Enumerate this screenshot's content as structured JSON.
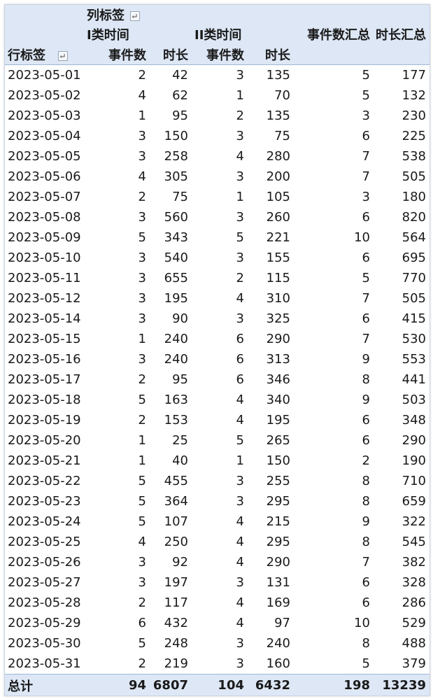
{
  "pivot": {
    "row_label_header": "行标签",
    "column_label_header": "列标签",
    "groups": [
      "I类时间",
      "II类时间"
    ],
    "measures": [
      "事件数",
      "时长"
    ],
    "total_headers": [
      "事件数汇总",
      "时长汇总"
    ],
    "total_row_label": "总计",
    "rows": [
      {
        "date": "2023-05-01",
        "n1": 2,
        "t1": 42,
        "n2": 3,
        "t2": 135,
        "sn": 5,
        "st": 177
      },
      {
        "date": "2023-05-02",
        "n1": 4,
        "t1": 62,
        "n2": 1,
        "t2": 70,
        "sn": 5,
        "st": 132
      },
      {
        "date": "2023-05-03",
        "n1": 1,
        "t1": 95,
        "n2": 2,
        "t2": 135,
        "sn": 3,
        "st": 230
      },
      {
        "date": "2023-05-04",
        "n1": 3,
        "t1": 150,
        "n2": 3,
        "t2": 75,
        "sn": 6,
        "st": 225
      },
      {
        "date": "2023-05-05",
        "n1": 3,
        "t1": 258,
        "n2": 4,
        "t2": 280,
        "sn": 7,
        "st": 538
      },
      {
        "date": "2023-05-06",
        "n1": 4,
        "t1": 305,
        "n2": 3,
        "t2": 200,
        "sn": 7,
        "st": 505
      },
      {
        "date": "2023-05-07",
        "n1": 2,
        "t1": 75,
        "n2": 1,
        "t2": 105,
        "sn": 3,
        "st": 180
      },
      {
        "date": "2023-05-08",
        "n1": 3,
        "t1": 560,
        "n2": 3,
        "t2": 260,
        "sn": 6,
        "st": 820
      },
      {
        "date": "2023-05-09",
        "n1": 5,
        "t1": 343,
        "n2": 5,
        "t2": 221,
        "sn": 10,
        "st": 564
      },
      {
        "date": "2023-05-10",
        "n1": 3,
        "t1": 540,
        "n2": 3,
        "t2": 155,
        "sn": 6,
        "st": 695
      },
      {
        "date": "2023-05-11",
        "n1": 3,
        "t1": 655,
        "n2": 2,
        "t2": 115,
        "sn": 5,
        "st": 770
      },
      {
        "date": "2023-05-12",
        "n1": 3,
        "t1": 195,
        "n2": 4,
        "t2": 310,
        "sn": 7,
        "st": 505
      },
      {
        "date": "2023-05-14",
        "n1": 3,
        "t1": 90,
        "n2": 3,
        "t2": 325,
        "sn": 6,
        "st": 415
      },
      {
        "date": "2023-05-15",
        "n1": 1,
        "t1": 240,
        "n2": 6,
        "t2": 290,
        "sn": 7,
        "st": 530
      },
      {
        "date": "2023-05-16",
        "n1": 3,
        "t1": 240,
        "n2": 6,
        "t2": 313,
        "sn": 9,
        "st": 553
      },
      {
        "date": "2023-05-17",
        "n1": 2,
        "t1": 95,
        "n2": 6,
        "t2": 346,
        "sn": 8,
        "st": 441
      },
      {
        "date": "2023-05-18",
        "n1": 5,
        "t1": 163,
        "n2": 4,
        "t2": 340,
        "sn": 9,
        "st": 503
      },
      {
        "date": "2023-05-19",
        "n1": 2,
        "t1": 153,
        "n2": 4,
        "t2": 195,
        "sn": 6,
        "st": 348
      },
      {
        "date": "2023-05-20",
        "n1": 1,
        "t1": 25,
        "n2": 5,
        "t2": 265,
        "sn": 6,
        "st": 290
      },
      {
        "date": "2023-05-21",
        "n1": 1,
        "t1": 40,
        "n2": 1,
        "t2": 150,
        "sn": 2,
        "st": 190
      },
      {
        "date": "2023-05-22",
        "n1": 5,
        "t1": 455,
        "n2": 3,
        "t2": 255,
        "sn": 8,
        "st": 710
      },
      {
        "date": "2023-05-23",
        "n1": 5,
        "t1": 364,
        "n2": 3,
        "t2": 295,
        "sn": 8,
        "st": 659
      },
      {
        "date": "2023-05-24",
        "n1": 5,
        "t1": 107,
        "n2": 4,
        "t2": 215,
        "sn": 9,
        "st": 322
      },
      {
        "date": "2023-05-25",
        "n1": 4,
        "t1": 250,
        "n2": 4,
        "t2": 295,
        "sn": 8,
        "st": 545
      },
      {
        "date": "2023-05-26",
        "n1": 3,
        "t1": 92,
        "n2": 4,
        "t2": 290,
        "sn": 7,
        "st": 382
      },
      {
        "date": "2023-05-27",
        "n1": 3,
        "t1": 197,
        "n2": 3,
        "t2": 131,
        "sn": 6,
        "st": 328
      },
      {
        "date": "2023-05-28",
        "n1": 2,
        "t1": 117,
        "n2": 4,
        "t2": 169,
        "sn": 6,
        "st": 286
      },
      {
        "date": "2023-05-29",
        "n1": 6,
        "t1": 432,
        "n2": 4,
        "t2": 97,
        "sn": 10,
        "st": 529
      },
      {
        "date": "2023-05-30",
        "n1": 5,
        "t1": 248,
        "n2": 3,
        "t2": 240,
        "sn": 8,
        "st": 488
      },
      {
        "date": "2023-05-31",
        "n1": 2,
        "t1": 219,
        "n2": 3,
        "t2": 160,
        "sn": 5,
        "st": 379
      }
    ],
    "totals": {
      "n1": 94,
      "t1": 6807,
      "n2": 104,
      "t2": 6432,
      "sn": 198,
      "st": 13239
    }
  },
  "colors": {
    "header_bg": "#dde7f5",
    "border": "#9fb6d9"
  },
  "icons": {
    "row_filter": "filter-dropdown-icon",
    "column_filter": "filter-dropdown-icon"
  }
}
